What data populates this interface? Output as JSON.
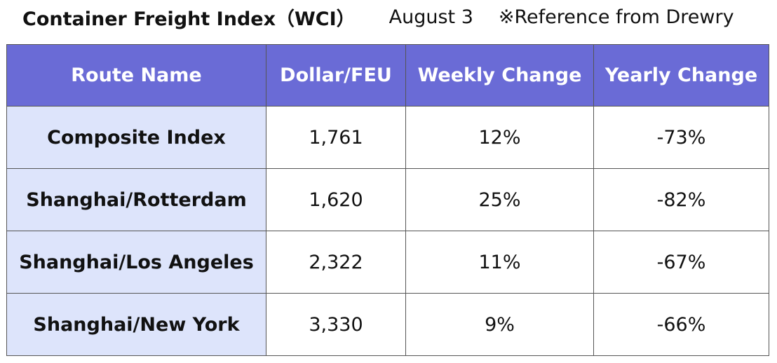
{
  "header": {
    "title": "Container Freight Index（WCI）",
    "date": "August 3",
    "note": "※Reference from Drewry"
  },
  "table": {
    "columns": [
      "Route Name",
      "Dollar/FEU",
      "Weekly Change",
      "Yearly Change"
    ],
    "rows": [
      [
        "Composite Index",
        "1,761",
        "12%",
        "-73%"
      ],
      [
        "Shanghai/Rotterdam",
        "1,620",
        "25%",
        "-82%"
      ],
      [
        "Shanghai/Los Angeles",
        "2,322",
        "11%",
        "-67%"
      ],
      [
        "Shanghai/New York",
        "3,330",
        "9%",
        "-66%"
      ]
    ]
  },
  "colors": {
    "header_bg": "#6a6bd6",
    "route_cell_bg": "#dde4fb",
    "border": "#555555"
  }
}
